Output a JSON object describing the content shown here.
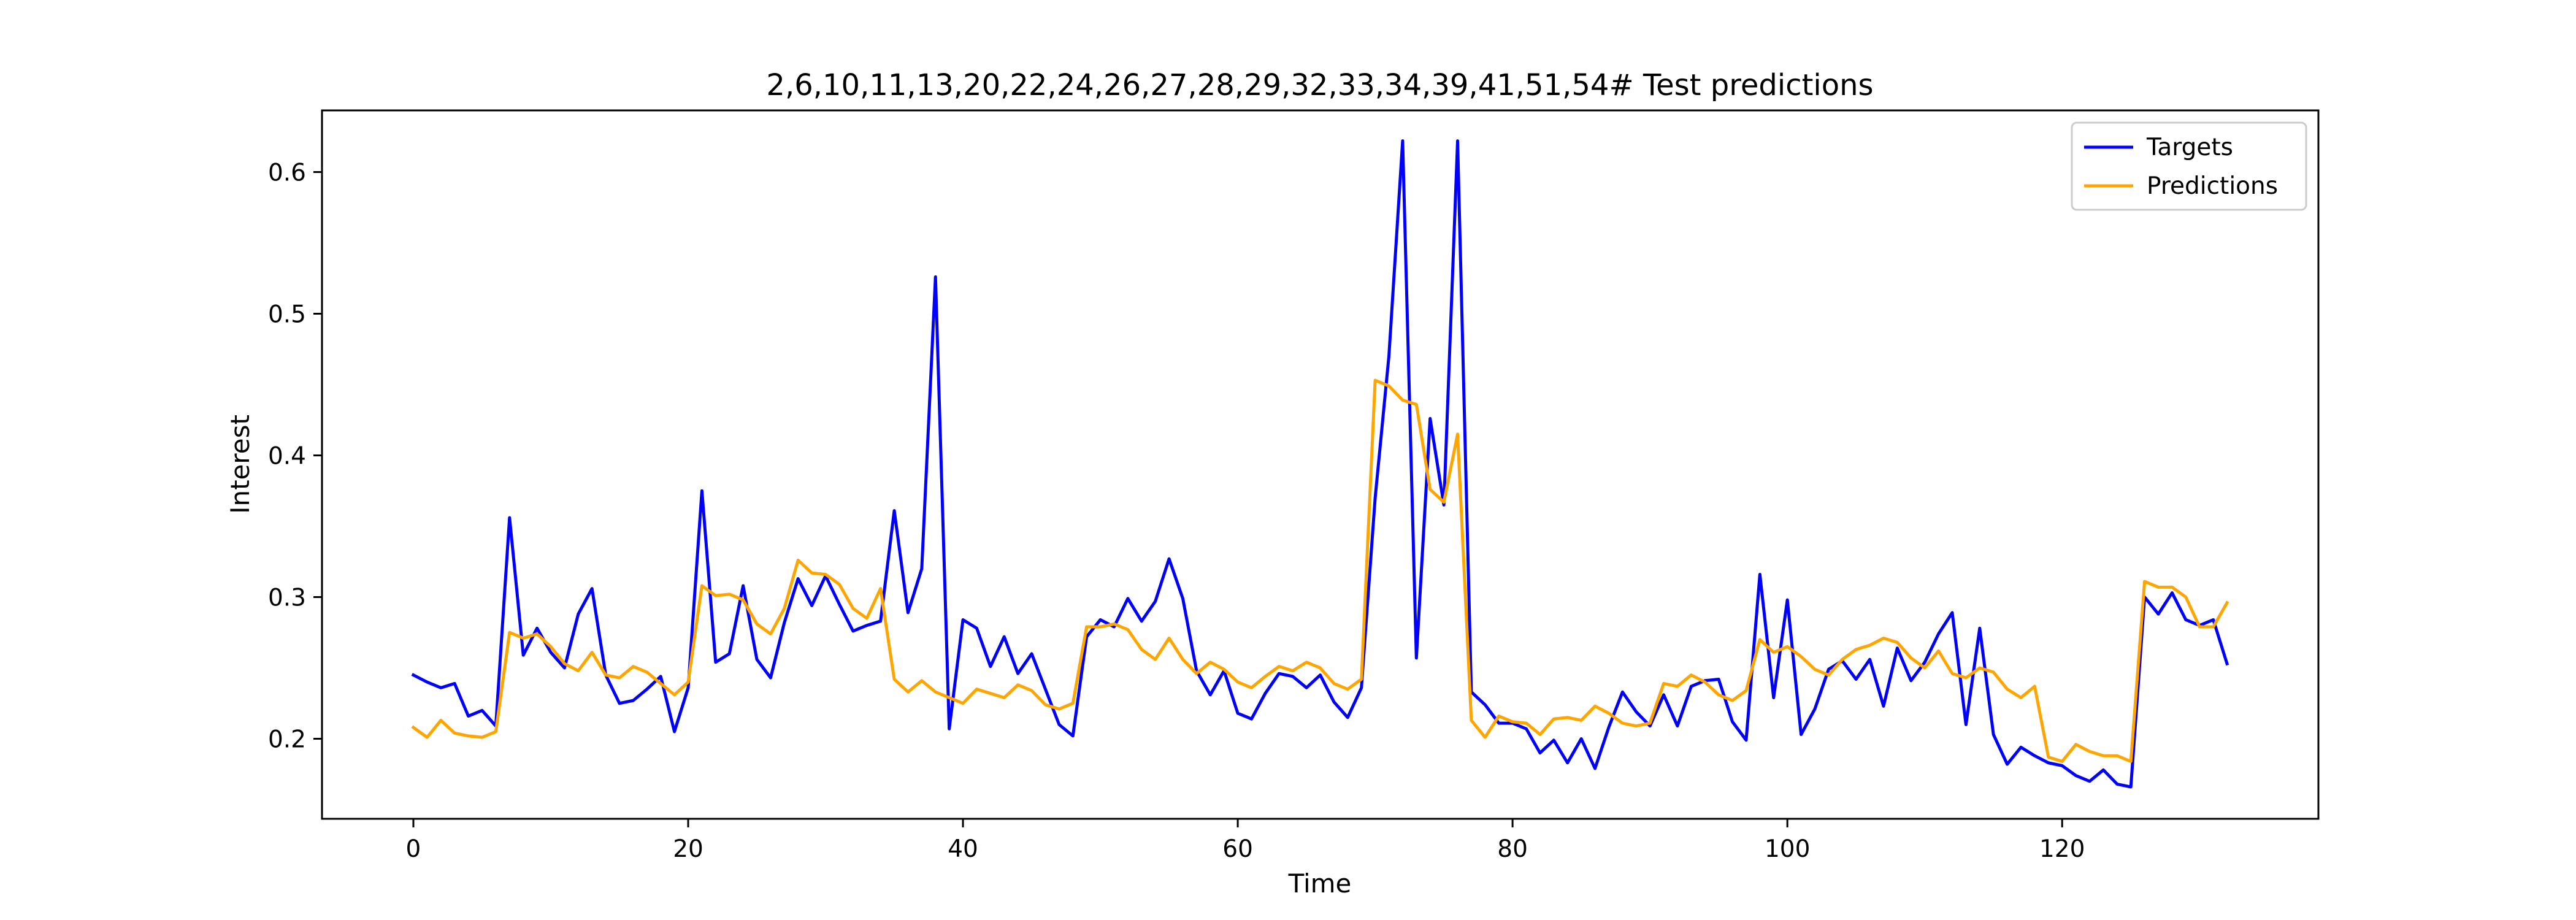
{
  "chart_data": {
    "type": "line",
    "title": "2,6,10,11,13,20,22,24,26,27,28,29,32,33,34,39,41,51,54# Test predictions",
    "xlabel": "Time",
    "ylabel": "Interest",
    "xlim": [
      -6.65,
      138.65
    ],
    "ylim": [
      0.1435,
      0.6435
    ],
    "xticks": [
      0,
      20,
      40,
      60,
      80,
      100,
      120
    ],
    "yticks": [
      0.2,
      0.3,
      0.4,
      0.5,
      0.6
    ],
    "xtick_labels": [
      "0",
      "20",
      "40",
      "60",
      "80",
      "100",
      "120"
    ],
    "ytick_labels": [
      "0.2",
      "0.3",
      "0.4",
      "0.5",
      "0.6"
    ],
    "grid": false,
    "legend_position": "top-right",
    "series": [
      {
        "name": "Targets",
        "color": "#0000ff",
        "values": [
          0.245,
          0.24,
          0.236,
          0.239,
          0.216,
          0.22,
          0.209,
          0.356,
          0.259,
          0.278,
          0.261,
          0.25,
          0.288,
          0.306,
          0.245,
          0.225,
          0.227,
          0.235,
          0.244,
          0.205,
          0.236,
          0.375,
          0.254,
          0.26,
          0.308,
          0.256,
          0.243,
          0.282,
          0.313,
          0.294,
          0.315,
          0.295,
          0.276,
          0.28,
          0.283,
          0.361,
          0.289,
          0.32,
          0.526,
          0.207,
          0.284,
          0.278,
          0.251,
          0.272,
          0.246,
          0.26,
          0.235,
          0.21,
          0.202,
          0.272,
          0.284,
          0.279,
          0.299,
          0.283,
          0.297,
          0.327,
          0.299,
          0.248,
          0.231,
          0.248,
          0.218,
          0.214,
          0.232,
          0.246,
          0.244,
          0.236,
          0.245,
          0.226,
          0.215,
          0.236,
          0.37,
          0.47,
          0.622,
          0.257,
          0.426,
          0.365,
          0.622,
          0.233,
          0.224,
          0.211,
          0.211,
          0.207,
          0.19,
          0.199,
          0.183,
          0.2,
          0.179,
          0.208,
          0.233,
          0.219,
          0.209,
          0.231,
          0.209,
          0.237,
          0.241,
          0.242,
          0.212,
          0.199,
          0.316,
          0.229,
          0.298,
          0.203,
          0.221,
          0.249,
          0.255,
          0.242,
          0.256,
          0.223,
          0.264,
          0.241,
          0.254,
          0.274,
          0.289,
          0.21,
          0.278,
          0.203,
          0.182,
          0.194,
          0.188,
          0.183,
          0.181,
          0.174,
          0.17,
          0.178,
          0.168,
          0.166,
          0.3,
          0.288,
          0.303,
          0.284,
          0.28,
          0.284,
          0.253
        ]
      },
      {
        "name": "Predictions",
        "color": "#ffa500",
        "values": [
          0.208,
          0.201,
          0.213,
          0.204,
          0.202,
          0.201,
          0.205,
          0.275,
          0.271,
          0.274,
          0.265,
          0.253,
          0.248,
          0.261,
          0.245,
          0.243,
          0.251,
          0.247,
          0.239,
          0.231,
          0.24,
          0.308,
          0.301,
          0.302,
          0.298,
          0.281,
          0.274,
          0.292,
          0.326,
          0.317,
          0.316,
          0.309,
          0.292,
          0.285,
          0.306,
          0.242,
          0.233,
          0.241,
          0.233,
          0.229,
          0.225,
          0.235,
          0.232,
          0.229,
          0.238,
          0.234,
          0.224,
          0.221,
          0.225,
          0.279,
          0.279,
          0.281,
          0.277,
          0.263,
          0.256,
          0.271,
          0.256,
          0.246,
          0.254,
          0.249,
          0.24,
          0.236,
          0.244,
          0.251,
          0.248,
          0.254,
          0.25,
          0.239,
          0.235,
          0.242,
          0.453,
          0.449,
          0.439,
          0.436,
          0.376,
          0.367,
          0.415,
          0.213,
          0.201,
          0.216,
          0.212,
          0.211,
          0.203,
          0.214,
          0.215,
          0.213,
          0.223,
          0.218,
          0.211,
          0.209,
          0.211,
          0.239,
          0.237,
          0.245,
          0.24,
          0.231,
          0.227,
          0.234,
          0.27,
          0.261,
          0.265,
          0.258,
          0.249,
          0.245,
          0.256,
          0.263,
          0.266,
          0.271,
          0.268,
          0.257,
          0.25,
          0.262,
          0.246,
          0.243,
          0.25,
          0.247,
          0.235,
          0.229,
          0.237,
          0.187,
          0.184,
          0.196,
          0.191,
          0.188,
          0.188,
          0.184,
          0.311,
          0.307,
          0.307,
          0.3,
          0.279,
          0.279,
          0.296
        ]
      }
    ]
  }
}
